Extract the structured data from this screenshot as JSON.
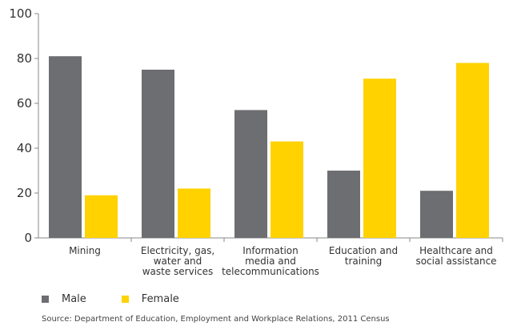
{
  "chart_data": {
    "type": "bar",
    "categories": [
      [
        "Mining"
      ],
      [
        "Electricity, gas,",
        "water and",
        "waste services"
      ],
      [
        "Information",
        "media and",
        "telecommunications"
      ],
      [
        "Education and",
        "training"
      ],
      [
        "Healthcare and",
        "social assistance"
      ]
    ],
    "series": [
      {
        "name": "Male",
        "color": "#6d6e71",
        "values": [
          81,
          75,
          57,
          30,
          21
        ]
      },
      {
        "name": "Female",
        "color": "#ffd200",
        "values": [
          19,
          22,
          43,
          71,
          78
        ]
      }
    ],
    "ylim": [
      0,
      100
    ],
    "yticks": [
      0,
      20,
      40,
      60,
      80,
      100
    ],
    "grid": false,
    "legend_position": "bottom-left"
  },
  "legend": {
    "male_label": "Male",
    "female_label": "Female"
  },
  "source": "Source: Department of Education, Employment and Workplace Relations, 2011 Census"
}
